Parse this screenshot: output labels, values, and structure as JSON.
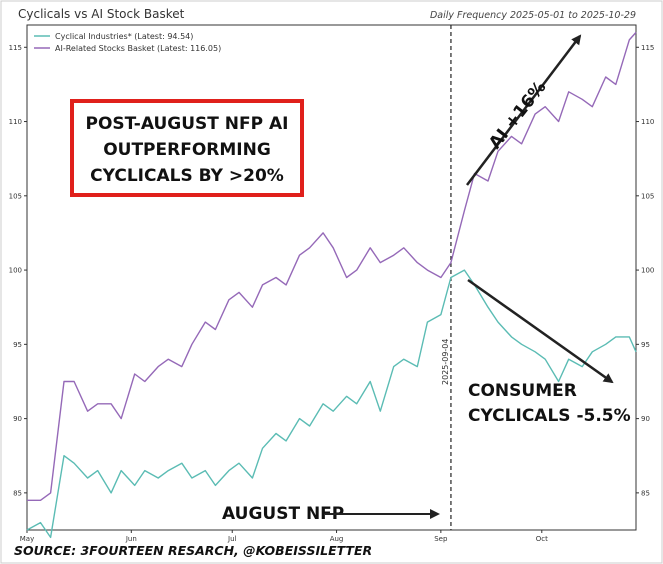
{
  "header": {
    "title": "Cyclicals vs AI Stock Basket",
    "frequency": "Daily Frequency 2025-05-01 to 2025-10-29"
  },
  "chart_data": {
    "type": "line",
    "title": "Cyclicals vs AI Stock Basket",
    "subtitle": "Daily Frequency 2025-05-01 to 2025-10-29",
    "x_range": [
      "2025-05-01",
      "2025-10-29"
    ],
    "x_tick_labels": [
      "May",
      "Jun",
      "Jul",
      "Aug",
      "Sep",
      "Oct"
    ],
    "x_tick_dates": [
      "2025-05-01",
      "2025-06-01",
      "2025-07-01",
      "2025-08-01",
      "2025-09-01",
      "2025-10-01"
    ],
    "ylim": [
      82.5,
      116.5
    ],
    "y_ticks": [
      85,
      90,
      95,
      100,
      105,
      110,
      115
    ],
    "grid": false,
    "legend": "top-left",
    "vline": {
      "date": "2025-09-04",
      "label": "2025-09-04"
    },
    "series": [
      {
        "name": "Cyclical Industries* (Latest: 94.54)",
        "color": "#5bbcb4",
        "x": [
          "2025-05-01",
          "2025-05-05",
          "2025-05-08",
          "2025-05-12",
          "2025-05-15",
          "2025-05-19",
          "2025-05-22",
          "2025-05-26",
          "2025-05-29",
          "2025-06-02",
          "2025-06-05",
          "2025-06-09",
          "2025-06-12",
          "2025-06-16",
          "2025-06-19",
          "2025-06-23",
          "2025-06-26",
          "2025-06-30",
          "2025-07-03",
          "2025-07-07",
          "2025-07-10",
          "2025-07-14",
          "2025-07-17",
          "2025-07-21",
          "2025-07-24",
          "2025-07-28",
          "2025-07-31",
          "2025-08-04",
          "2025-08-07",
          "2025-08-11",
          "2025-08-14",
          "2025-08-18",
          "2025-08-21",
          "2025-08-25",
          "2025-08-28",
          "2025-09-01",
          "2025-09-04",
          "2025-09-08",
          "2025-09-11",
          "2025-09-15",
          "2025-09-18",
          "2025-09-22",
          "2025-09-25",
          "2025-09-29",
          "2025-10-02",
          "2025-10-06",
          "2025-10-09",
          "2025-10-13",
          "2025-10-16",
          "2025-10-20",
          "2025-10-23",
          "2025-10-27",
          "2025-10-29"
        ],
        "values": [
          82.5,
          83.0,
          82.0,
          87.5,
          87.0,
          86.0,
          86.5,
          85.0,
          86.5,
          85.5,
          86.5,
          86.0,
          86.5,
          87.0,
          86.0,
          86.5,
          85.5,
          86.5,
          87.0,
          86.0,
          88.0,
          89.0,
          88.5,
          90.0,
          89.5,
          91.0,
          90.5,
          91.5,
          91.0,
          92.5,
          90.5,
          93.5,
          94.0,
          93.5,
          96.5,
          97.0,
          99.5,
          100.0,
          99.0,
          97.5,
          96.5,
          95.5,
          95.0,
          94.5,
          94.0,
          92.5,
          94.0,
          93.5,
          94.5,
          95.0,
          95.5,
          95.5,
          94.5
        ]
      },
      {
        "name": "AI-Related Stocks Basket (Latest: 116.05)",
        "color": "#9569b8",
        "x": [
          "2025-05-01",
          "2025-05-05",
          "2025-05-08",
          "2025-05-12",
          "2025-05-15",
          "2025-05-19",
          "2025-05-22",
          "2025-05-26",
          "2025-05-29",
          "2025-06-02",
          "2025-06-05",
          "2025-06-09",
          "2025-06-12",
          "2025-06-16",
          "2025-06-19",
          "2025-06-23",
          "2025-06-26",
          "2025-06-30",
          "2025-07-03",
          "2025-07-07",
          "2025-07-10",
          "2025-07-14",
          "2025-07-17",
          "2025-07-21",
          "2025-07-24",
          "2025-07-28",
          "2025-07-31",
          "2025-08-04",
          "2025-08-07",
          "2025-08-11",
          "2025-08-14",
          "2025-08-18",
          "2025-08-21",
          "2025-08-25",
          "2025-08-28",
          "2025-09-01",
          "2025-09-04",
          "2025-09-08",
          "2025-09-11",
          "2025-09-15",
          "2025-09-18",
          "2025-09-22",
          "2025-09-25",
          "2025-09-29",
          "2025-10-02",
          "2025-10-06",
          "2025-10-09",
          "2025-10-13",
          "2025-10-16",
          "2025-10-20",
          "2025-10-23",
          "2025-10-27",
          "2025-10-29"
        ],
        "values": [
          84.5,
          84.5,
          85.0,
          92.5,
          92.5,
          90.5,
          91.0,
          91.0,
          90.0,
          93.0,
          92.5,
          93.5,
          94.0,
          93.5,
          95.0,
          96.5,
          96.0,
          98.0,
          98.5,
          97.5,
          99.0,
          99.5,
          99.0,
          101.0,
          101.5,
          102.5,
          101.5,
          99.5,
          100.0,
          101.5,
          100.5,
          101.0,
          101.5,
          100.5,
          100.0,
          99.5,
          100.5,
          104.0,
          106.5,
          106.0,
          108.0,
          109.0,
          108.5,
          110.5,
          111.0,
          110.0,
          112.0,
          111.5,
          111.0,
          113.0,
          112.5,
          115.5,
          116.0
        ]
      }
    ]
  },
  "annotations": {
    "box_line1": "POST-AUGUST NFP AI",
    "box_line2": "OUTPERFORMING",
    "box_line3": "CYCLICALS BY >20%",
    "ai_label": "AI +16%",
    "consumer_line1": "CONSUMER",
    "consumer_line2": "CYCLICALS -5.5%",
    "nfp_label": "AUGUST NFP"
  },
  "footer": {
    "source": "SOURCE: 3FOURTEEN RESARCH, @KOBEISSILETTER"
  }
}
